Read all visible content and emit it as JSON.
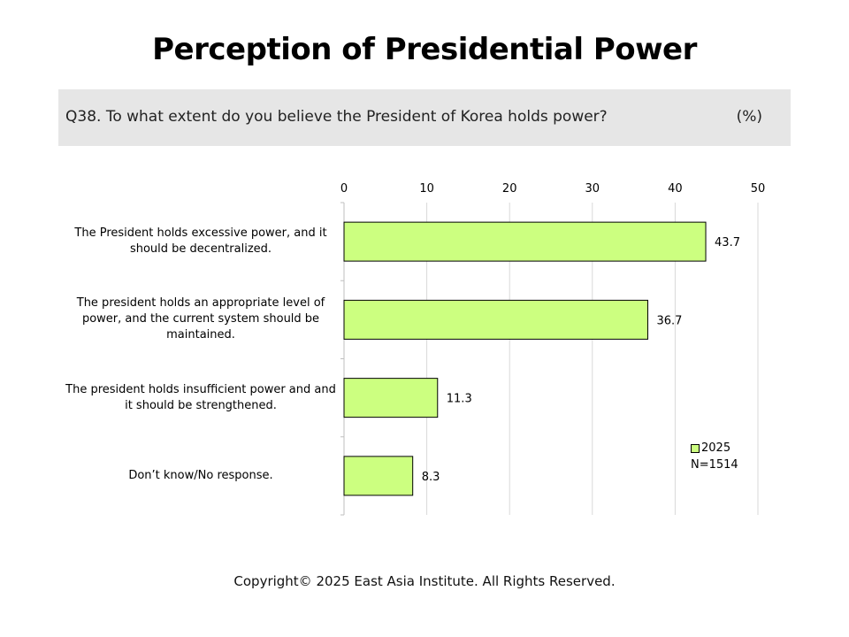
{
  "title": "Perception of Presidential Power",
  "question": "Q38. To what extent do you believe the President of Korea holds power?",
  "unit": "(%)",
  "copyright": "Copyright© 2025 East Asia Institute. All Rights Reserved.",
  "legend": {
    "series_label": "2025",
    "note": "N=1514"
  },
  "colors": {
    "bar_fill": "#ccff80",
    "bar_stroke": "#000000",
    "grid": "#d9d9d9",
    "question_bg": "#e6e6e6"
  },
  "chart_data": {
    "type": "bar",
    "orientation": "horizontal",
    "categories": [
      "The President holds excessive power, and it should be decentralized.",
      "The president holds an appropriate level of power, and the current system should be maintained.",
      "The president holds insufficient power and and it should be strengthened.",
      "Don’t know/No response."
    ],
    "series": [
      {
        "name": "2025",
        "values": [
          43.7,
          36.7,
          11.3,
          8.3
        ]
      }
    ],
    "xlim": [
      0,
      50
    ],
    "xticks": [
      0,
      10,
      20,
      30,
      40,
      50
    ],
    "axis_position": "top",
    "grid": true,
    "legend_position": "bottom-right"
  }
}
